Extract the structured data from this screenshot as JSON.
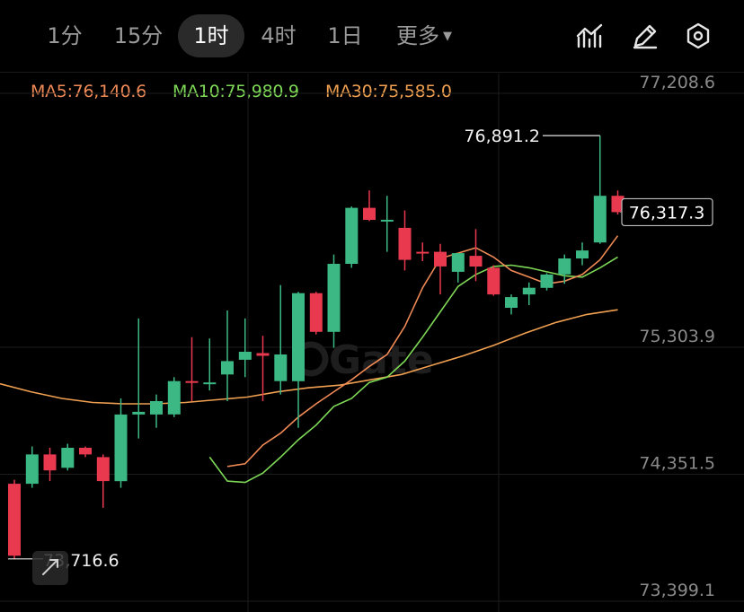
{
  "toolbar": {
    "timeframes": [
      "1分",
      "15分",
      "1时",
      "4时",
      "1日"
    ],
    "active": "1时",
    "more_label": "更多",
    "icons": [
      "indicator-icon",
      "draw-pencil-icon",
      "settings-hexagon-icon"
    ]
  },
  "indicators": {
    "ma5": "MA5:76,140.6",
    "ma10": "MA10:75,980.9",
    "ma30": "MA30:75,585.0"
  },
  "watermark": "Gate",
  "colors": {
    "up": "#e8394f",
    "down": "#3cb884",
    "ma5": "#f08a56",
    "ma10": "#7ed957",
    "ma30": "#f0a050",
    "background": "#000000"
  },
  "chart_data": {
    "type": "candlestick",
    "price_labels": [
      "77,208.6",
      "75,303.9",
      "74,351.5",
      "73,399.1"
    ],
    "ylim": [
      73399.1,
      77208.6
    ],
    "last_price": "76,317.3",
    "high_marker": "76,891.2",
    "low_marker": "73,716.6",
    "candles": [
      {
        "o": 74280,
        "h": 74310,
        "c": 73740,
        "l": 73716.6
      },
      {
        "o": 74280,
        "h": 74560,
        "c": 74500,
        "l": 74250
      },
      {
        "o": 74500,
        "h": 74550,
        "c": 74380,
        "l": 74300
      },
      {
        "o": 74400,
        "h": 74580,
        "c": 74550,
        "l": 74380
      },
      {
        "o": 74550,
        "h": 74560,
        "c": 74500,
        "l": 74480
      },
      {
        "o": 74480,
        "h": 74500,
        "c": 74300,
        "l": 74100
      },
      {
        "o": 74300,
        "h": 74920,
        "c": 74800,
        "l": 74250
      },
      {
        "o": 74800,
        "h": 75520,
        "c": 74820,
        "l": 74620
      },
      {
        "o": 74800,
        "h": 74950,
        "c": 74900,
        "l": 74700
      },
      {
        "o": 74800,
        "h": 75080,
        "c": 75050,
        "l": 74780
      },
      {
        "o": 75050,
        "h": 75380,
        "c": 75040,
        "l": 74900
      },
      {
        "o": 75030,
        "h": 75370,
        "c": 75040,
        "l": 74980
      },
      {
        "o": 75100,
        "h": 75580,
        "c": 75200,
        "l": 74900
      },
      {
        "o": 75210,
        "h": 75520,
        "c": 75270,
        "l": 75080
      },
      {
        "o": 75260,
        "h": 75390,
        "c": 75240,
        "l": 74900
      },
      {
        "o": 75050,
        "h": 75770,
        "c": 75250,
        "l": 74950
      },
      {
        "o": 75050,
        "h": 75720,
        "c": 75710,
        "l": 74700
      },
      {
        "o": 75710,
        "h": 75720,
        "c": 75420,
        "l": 75400
      },
      {
        "o": 75420,
        "h": 76000,
        "c": 75930,
        "l": 75300
      },
      {
        "o": 75930,
        "h": 76360,
        "c": 76350,
        "l": 75900
      },
      {
        "o": 76350,
        "h": 76480,
        "c": 76260,
        "l": 76250
      },
      {
        "o": 76260,
        "h": 76440,
        "c": 76260,
        "l": 76020
      },
      {
        "o": 76200,
        "h": 76330,
        "c": 75960,
        "l": 75880
      },
      {
        "o": 76020,
        "h": 76090,
        "c": 76010,
        "l": 75950
      },
      {
        "o": 76020,
        "h": 76080,
        "c": 75910,
        "l": 75700
      },
      {
        "o": 75870,
        "h": 76010,
        "c": 76010,
        "l": 75790
      },
      {
        "o": 75990,
        "h": 76190,
        "c": 75910,
        "l": 75800
      },
      {
        "o": 75900,
        "h": 75920,
        "c": 75700,
        "l": 75690
      },
      {
        "o": 75600,
        "h": 75700,
        "c": 75680,
        "l": 75550
      },
      {
        "o": 75700,
        "h": 75790,
        "c": 75750,
        "l": 75620
      },
      {
        "o": 75750,
        "h": 75860,
        "c": 75850,
        "l": 75730
      },
      {
        "o": 75850,
        "h": 76000,
        "c": 75970,
        "l": 75780
      },
      {
        "o": 75970,
        "h": 76090,
        "c": 76030,
        "l": 75920
      },
      {
        "o": 76090,
        "h": 76891.2,
        "c": 76440,
        "l": 76080
      },
      {
        "o": 76440,
        "h": 76480,
        "c": 76317.3,
        "l": 76300
      }
    ],
    "ma5": [
      74410,
      74430,
      74570,
      74660,
      74780,
      74880,
      74970,
      75060,
      75160,
      75250,
      75460,
      75750,
      75970,
      76010,
      76050,
      75980,
      75880,
      75830,
      75780,
      75800,
      75850,
      75960,
      76140.6
    ],
    "ma10": [
      74480,
      74300,
      74290,
      74360,
      74480,
      74610,
      74720,
      74860,
      74920,
      75040,
      75080,
      75200,
      75380,
      75570,
      75760,
      75850,
      75910,
      75920,
      75900,
      75870,
      75840,
      75830,
      75900,
      75980.9
    ],
    "ma30": [
      75030,
      74970,
      74920,
      74890,
      74880,
      74880,
      74890,
      74910,
      74930,
      74970,
      75000,
      75020,
      75060,
      75100,
      75170,
      75240,
      75320,
      75410,
      75490,
      75550,
      75585.0
    ]
  }
}
